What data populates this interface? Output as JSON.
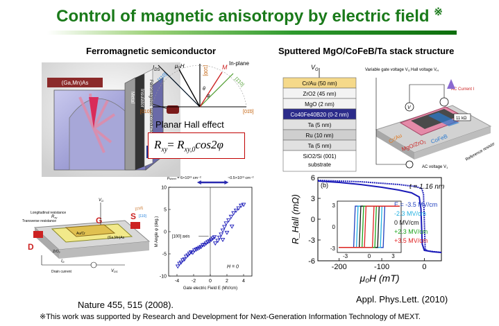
{
  "title": "Control of magnetic anisotropy by electric field",
  "title_mark": "※",
  "left_heading": "Ferromagnetic semiconductor",
  "right_heading": "Sputtered MgO/CoFeB/Ta stack structure",
  "device_3d": {
    "label_material": "(Ga,Mn)As",
    "label_metal": "Metal",
    "label_insulator": "Insulator",
    "label_fm": "Ferromagnetic semiconductor"
  },
  "inplane_diagram": {
    "label_inplane": "In-plane",
    "label_i": "I",
    "label_i_sub": "DS",
    "label_h": "μ₀H",
    "label_m": "M",
    "label_theta": "θ",
    "label_phi": "φ",
    "dir_100": "[100]",
    "dir_110": "[110]",
    "dir_1m10": "[1̄10]",
    "dir_010": "[010]",
    "dir_01m0": "[01̄0]"
  },
  "planar_hall": "Planar Hall effect",
  "formula": {
    "lhs": "R",
    "lhs_sub": "xy",
    "eq": "= ",
    "rhs": "R",
    "rhs_sub": "xy,0",
    "tail": "cos2φ"
  },
  "device_bottom": {
    "longitudinal": "Longitudinal resistance",
    "transverse": "Transverse resistance",
    "rxy": "R",
    "rxy_sub": "xy",
    "vg": "V",
    "vg_sub": "G",
    "gate": "G",
    "source": "S",
    "drain": "D",
    "aucr": "Au/Cr",
    "gamnas": "(Ga,Mn)As",
    "zro2": "ZrO",
    "zro2_sub": "2",
    "i_d": "I",
    "i_d_sub": "D",
    "drain_current": "Drain current",
    "vds": "V",
    "vds_sub": "DS",
    "dir_1m10": "[1̄10]",
    "dir_110": "[110]"
  },
  "citation_left": "Nature 455, 515 (2008).",
  "citation_right": "Appl. Phys.Lett. (2010)",
  "footnote": "※This work was supported by Research and Development for Next-Generation Information Technology of MEXT.",
  "stack": {
    "vg_label": "V",
    "vg_sub": "G",
    "layers": [
      {
        "label": "Cr/Au (50 nm)",
        "color": "#f5d98a"
      },
      {
        "label": "ZrO2 (45 nm)",
        "color": "#f3f3f3"
      },
      {
        "label": "MgO (2 nm)",
        "color": "#f3f3f3"
      },
      {
        "label": "Co40Fe40B20 (0-2 nm)",
        "color": "#2b2b8a"
      },
      {
        "label": "Ta (5 nm)",
        "color": "#e1e1e1"
      },
      {
        "label": "Ru (10 nm)",
        "color": "#cfcfcf"
      },
      {
        "label": "Ta (5 nm)",
        "color": "#e1e1e1"
      },
      {
        "label": "SiO2/Si (001) substrate",
        "color": "#ffffff"
      }
    ]
  },
  "right_device": {
    "variable_gate": "Variable gate voltage V",
    "variable_gate_sub": "G",
    "hall_voltage": "Hall voltage V",
    "hall_voltage_sub": "H",
    "ac_current": "AC Current I",
    "resistor": "11 kΩ",
    "ref_resistor": "Reference resistor R",
    "ref_resistor_sub": "r",
    "ac_voltage": "AC voltage V",
    "ac_voltage_sub": "1",
    "crau": "Cr/Au",
    "mgo_zro2": "MgO/ZrO",
    "mgo_zro2_sub": "2",
    "cofeb": "CoFeB",
    "v_symbol": "V"
  },
  "chart_data": [
    {
      "type": "scatter",
      "title": "",
      "xlabel": "Gate electric Field E (MV/cm)",
      "ylabel": "M Angle φ (deg.)",
      "xlim": [
        -5,
        5
      ],
      "ylim": [
        -10,
        10
      ],
      "x_ticks": [
        "-4",
        "-2",
        "0",
        "2",
        "4"
      ],
      "y_ticks": [
        "10",
        "5",
        "0",
        "-5",
        "-10"
      ],
      "annotation_axis": "[100] axis",
      "annotation_h": "H = 0",
      "sheet_left": "p",
      "sheet_left_sub": "sheet",
      "sheet_left_val": " = 6×10¹³ cm⁻²",
      "sheet_right": "~0.5×10¹³ cm⁻²",
      "series": [
        {
          "name": "",
          "points": [
            [
              -3.9,
              -7.8
            ],
            [
              -3.7,
              -7.2
            ],
            [
              -3.5,
              -6.9
            ],
            [
              -3.3,
              -6.4
            ],
            [
              -3.1,
              -6.2
            ],
            [
              -2.9,
              -5.6
            ],
            [
              -2.7,
              -5.3
            ],
            [
              -2.5,
              -4.9
            ],
            [
              -2.3,
              -4.6
            ],
            [
              -2.1,
              -4.7
            ],
            [
              -1.9,
              -4.2
            ],
            [
              -1.7,
              -4.0
            ],
            [
              -1.5,
              -3.8
            ],
            [
              -1.3,
              -3.6
            ],
            [
              -1.1,
              -3.4
            ],
            [
              -0.9,
              -3.0
            ],
            [
              -0.7,
              -2.9
            ],
            [
              -0.5,
              -2.6
            ],
            [
              -0.3,
              -2.3
            ],
            [
              -0.1,
              -2.1
            ],
            [
              0.1,
              -1.8
            ],
            [
              0.3,
              -1.5
            ],
            [
              0.5,
              -1.2
            ]
          ]
        },
        {
          "name": "",
          "points": [
            [
              0.6,
              -2.6
            ],
            [
              0.9,
              -2.0
            ],
            [
              1.1,
              -1.3
            ],
            [
              1.3,
              -0.6
            ],
            [
              1.5,
              0.3
            ],
            [
              1.7,
              1.1
            ],
            [
              1.9,
              1.9
            ],
            [
              2.2,
              2.6
            ],
            [
              2.5,
              3.4
            ],
            [
              2.8,
              4.2
            ],
            [
              3.1,
              4.8
            ],
            [
              3.4,
              5.3
            ],
            [
              3.7,
              5.9
            ],
            [
              4.0,
              6.1
            ],
            [
              1.5,
              -1.8
            ],
            [
              2.0,
              -0.2
            ],
            [
              2.6,
              1.2
            ]
          ]
        }
      ]
    },
    {
      "type": "line",
      "title": "",
      "panel_label": "(b)",
      "annotation": "t = 1.16 nm",
      "xlabel": "μ₀H (mT)",
      "ylabel": "R_Hall (mΩ)",
      "xlim": [
        -250,
        40
      ],
      "ylim": [
        -6,
        6
      ],
      "x_ticks": [
        "-200",
        "-100",
        "0"
      ],
      "y_ticks": [
        "6",
        "3",
        "0",
        "-3",
        "-6"
      ],
      "main_loop": {
        "down": [
          [
            -250,
            5.5
          ],
          [
            -200,
            5.3
          ],
          [
            -150,
            5.0
          ],
          [
            -100,
            4.6
          ],
          [
            -60,
            4.2
          ],
          [
            -30,
            3.8
          ],
          [
            -12,
            3.2
          ],
          [
            -8,
            1.5
          ],
          [
            -5,
            -3.6
          ],
          [
            0,
            -4.5
          ],
          [
            20,
            -4.7
          ],
          [
            40,
            -4.8
          ]
        ],
        "up": [
          [
            40,
            -4.8
          ],
          [
            10,
            -4.6
          ],
          [
            2,
            -4.4
          ],
          [
            -2,
            3.6
          ],
          [
            -6,
            4.4
          ],
          [
            -20,
            4.7
          ],
          [
            -60,
            5.0
          ],
          [
            -150,
            5.4
          ],
          [
            -250,
            5.6
          ]
        ]
      },
      "inset": {
        "xlim": [
          -4,
          4
        ],
        "ylim": [
          -3.6,
          3.6
        ],
        "x_ticks": [
          "-3",
          "0",
          "3"
        ],
        "y_ticks": [
          "3",
          "0",
          "-3"
        ],
        "series": [
          {
            "name": "E = -3.5 MV/cm",
            "color": "#1f3fbf",
            "hc": 1.9
          },
          {
            "name": "-2.3 MV/cm",
            "color": "#20b0e0",
            "hc": 1.55
          },
          {
            "name": "0 MV/cm",
            "color": "#111111",
            "hc": 1.2
          },
          {
            "name": "+2.3 MV/cm",
            "color": "#1aa31a",
            "hc": 0.85
          },
          {
            "name": "+3.5 MV/cm",
            "color": "#e01f1f",
            "hc": 0.55
          }
        ]
      }
    }
  ]
}
